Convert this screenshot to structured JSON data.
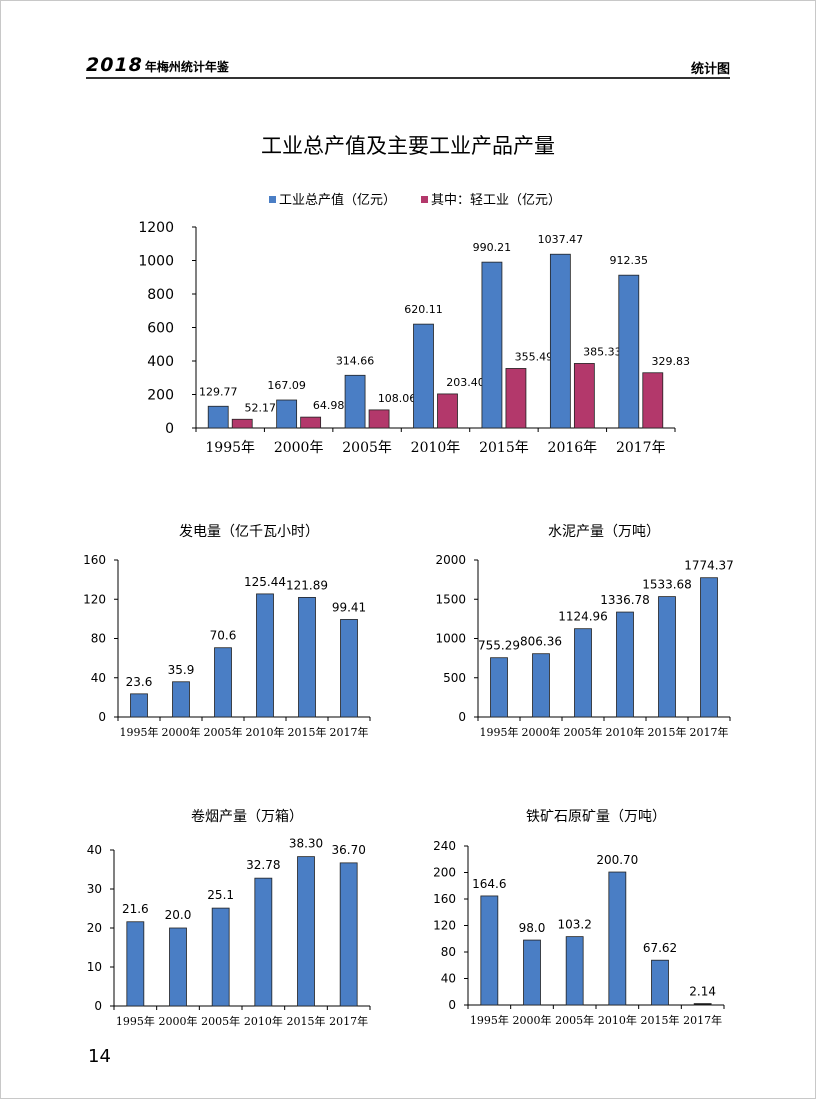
{
  "header": {
    "year": "2018",
    "book_title": "年梅州统计年鉴",
    "section": "统计图"
  },
  "page_title": "工业总产值及主要工业产品产量",
  "page_number": "14",
  "colors": {
    "blue": "#4a7ec5",
    "magenta": "#b3386b",
    "axis": "#000000"
  },
  "chart_data": [
    {
      "id": "industrial-output",
      "type": "bar",
      "title": "",
      "categories": [
        "1995年",
        "2000年",
        "2005年",
        "2010年",
        "2015年",
        "2016年",
        "2017年"
      ],
      "series": [
        {
          "name": "工业总产值（亿元）",
          "values": [
            129.77,
            167.09,
            314.66,
            620.11,
            990.21,
            1037.47,
            912.35
          ],
          "labels": [
            "129.77",
            "167.09",
            "314.66",
            "620.11",
            "990.21",
            "1037.47",
            "912.35"
          ],
          "color": "#4a7ec5"
        },
        {
          "name": "其中：轻工业（亿元）",
          "values": [
            52.17,
            64.98,
            108.06,
            203.4,
            355.49,
            385.33,
            329.83
          ],
          "labels": [
            "52.17",
            "64.98",
            "108.06",
            "203.40",
            "355.49",
            "385.33",
            "329.83"
          ],
          "color": "#b3386b"
        }
      ],
      "ylim": [
        0,
        1200
      ],
      "yticks": [
        "0",
        "200",
        "400",
        "600",
        "800",
        "1000",
        "1200"
      ],
      "legend": "top"
    },
    {
      "id": "electricity",
      "type": "bar",
      "title": "发电量（亿千瓦小时）",
      "categories": [
        "1995年",
        "2000年",
        "2005年",
        "2010年",
        "2015年",
        "2017年"
      ],
      "values": [
        23.6,
        35.9,
        70.6,
        125.44,
        121.89,
        99.41
      ],
      "labels": [
        "23.6",
        "35.9",
        "70.6",
        "125.44",
        "121.89",
        "99.41"
      ],
      "ylim": [
        0,
        160
      ],
      "yticks": [
        "0",
        "40",
        "80",
        "120",
        "160"
      ]
    },
    {
      "id": "cement",
      "type": "bar",
      "title": "水泥产量（万吨）",
      "categories": [
        "1995年",
        "2000年",
        "2005年",
        "2010年",
        "2015年",
        "2017年"
      ],
      "values": [
        755.29,
        806.36,
        1124.96,
        1336.78,
        1533.68,
        1774.37
      ],
      "labels": [
        "755.29",
        "806.36",
        "1124.96",
        "1336.78",
        "1533.68",
        "1774.37"
      ],
      "ylim": [
        0,
        2000
      ],
      "yticks": [
        "0",
        "500",
        "1000",
        "1500",
        "2000"
      ]
    },
    {
      "id": "cigarettes",
      "type": "bar",
      "title": "卷烟产量（万箱）",
      "categories": [
        "1995年",
        "2000年",
        "2005年",
        "2010年",
        "2015年",
        "2017年"
      ],
      "values": [
        21.6,
        20.0,
        25.1,
        32.78,
        38.3,
        36.7
      ],
      "labels": [
        "21.6",
        "20.0",
        "25.1",
        "32.78",
        "38.30",
        "36.70"
      ],
      "ylim": [
        0,
        40
      ],
      "yticks": [
        "0",
        "10",
        "20",
        "30",
        "40"
      ]
    },
    {
      "id": "iron-ore",
      "type": "bar",
      "title": "铁矿石原矿量（万吨）",
      "categories": [
        "1995年",
        "2000年",
        "2005年",
        "2010年",
        "2015年",
        "2017年"
      ],
      "values": [
        164.6,
        98.0,
        103.2,
        200.7,
        67.62,
        2.14
      ],
      "labels": [
        "164.6",
        "98.0",
        "103.2",
        "200.70",
        "67.62",
        "2.14"
      ],
      "ylim": [
        0,
        240
      ],
      "yticks": [
        "0",
        "40",
        "80",
        "120",
        "160",
        "200",
        "240"
      ]
    }
  ]
}
